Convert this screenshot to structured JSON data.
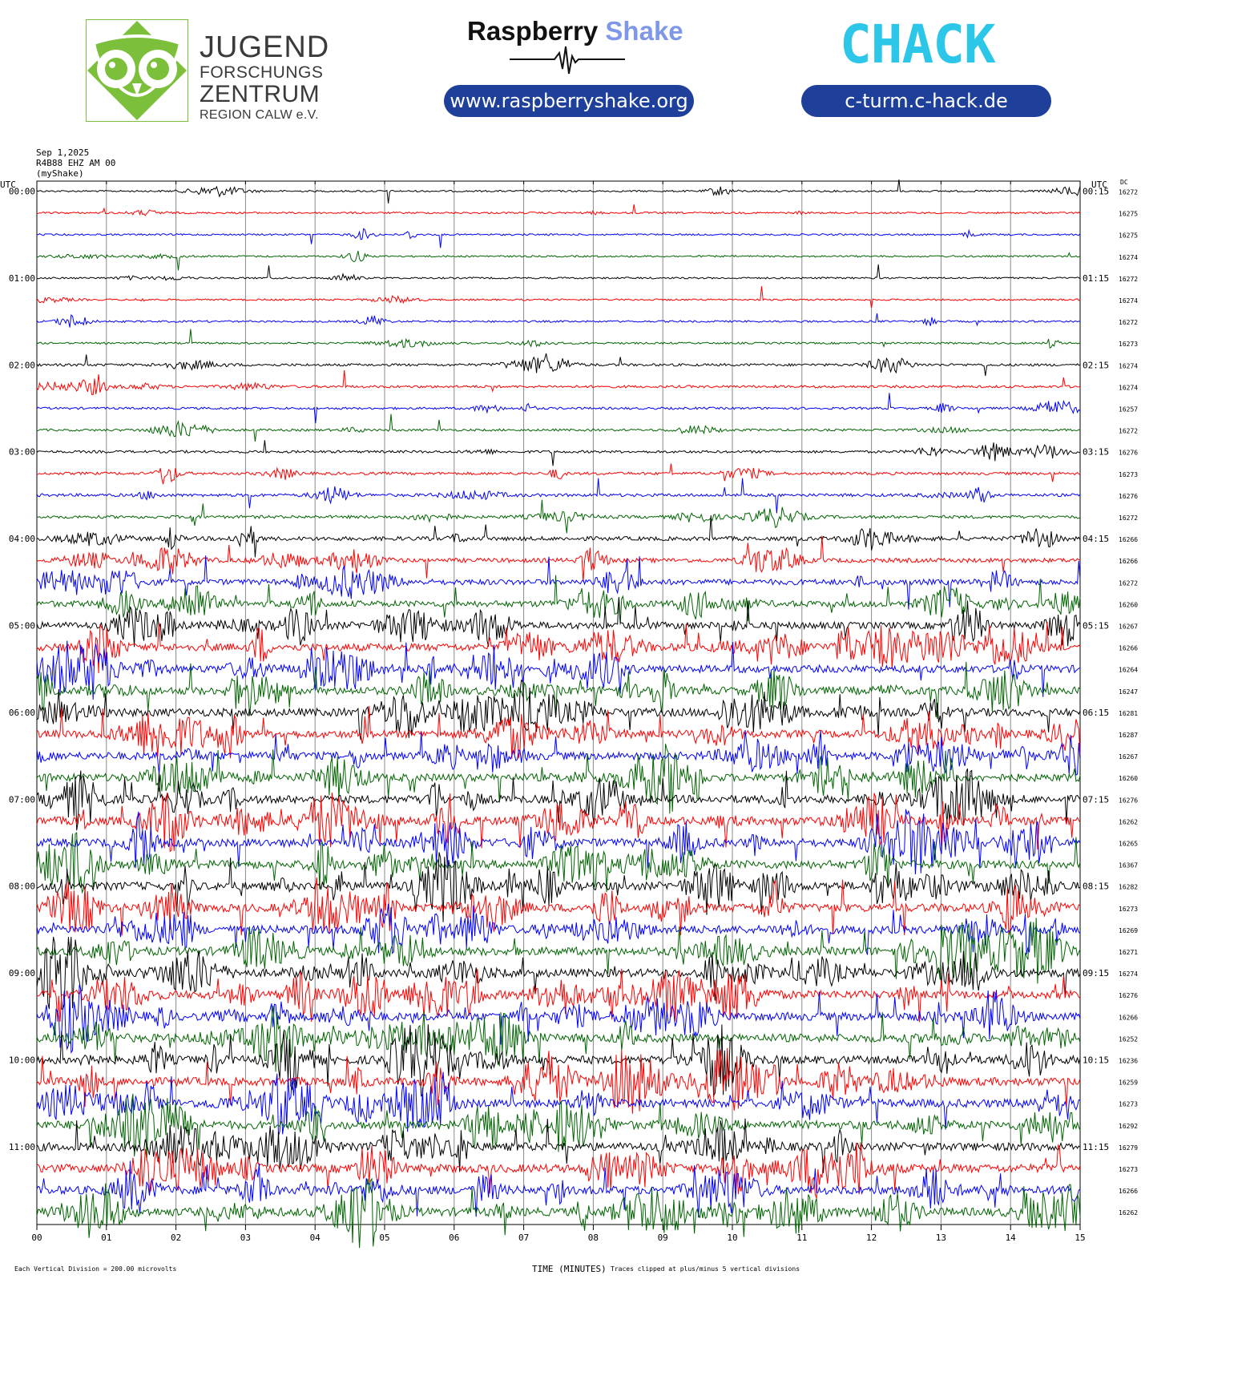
{
  "header": {
    "org_lines": [
      "JUGEND",
      "FORSCHUNGS",
      "ZENTRUM",
      "REGION CALW e.V."
    ],
    "rs_title_main": "Raspberry",
    "rs_title_accent": "Shake",
    "rs_url": "www.raspberryshake.org",
    "chack_logo_text": "CHACK",
    "chack_url": "c-turm.c-hack.de",
    "colors": {
      "owl_green": "#7cbf3a",
      "pill_blue": "#1e3f9a",
      "rs_accent": "#7f97e8",
      "chack_green": "#6cc531",
      "chack_cyan": "#2bc6e8"
    }
  },
  "meta": {
    "date": "Sep 1,2025",
    "station": "R4B88 EHZ AM 00",
    "source": "(myShake)",
    "left_tz": "UTC",
    "right_tz": "UTC",
    "dc_header": "DC",
    "footer_left": "Each Vertical Division =  200.00 microvolts",
    "footer_axis": "TIME (MINUTES)",
    "footer_right": "Traces clipped at plus/minus 5 vertical divisions"
  },
  "chart_data": {
    "type": "line",
    "title": "",
    "xlabel": "TIME (MINUTES)",
    "ylabel": "",
    "xlim": [
      0,
      15
    ],
    "x_ticks": [
      "00",
      "01",
      "02",
      "03",
      "04",
      "05",
      "06",
      "07",
      "08",
      "09",
      "10",
      "11",
      "12",
      "13",
      "14",
      "15"
    ],
    "grid": "vertical lines every minute",
    "trace_minutes": 15,
    "colors_cycle": [
      "#000000",
      "#ff0000",
      "#0000ff",
      "#006400"
    ],
    "left_labels": [
      "00:00",
      "",
      "",
      "",
      "01:00",
      "",
      "",
      "",
      "02:00",
      "",
      "",
      "",
      "03:00",
      "",
      "",
      "",
      "04:00",
      "",
      "",
      "",
      "05:00",
      "",
      "",
      "",
      "06:00",
      "",
      "",
      "",
      "07:00",
      "",
      "",
      "",
      "08:00",
      "",
      "",
      "",
      "09:00",
      "",
      "",
      "",
      "10:00",
      "",
      "",
      "",
      "11:00",
      "",
      "",
      ""
    ],
    "right_labels": [
      "00:15",
      "",
      "",
      "",
      "01:15",
      "",
      "",
      "",
      "02:15",
      "",
      "",
      "",
      "03:15",
      "",
      "",
      "",
      "04:15",
      "",
      "",
      "",
      "05:15",
      "",
      "",
      "",
      "06:15",
      "",
      "",
      "",
      "07:15",
      "",
      "",
      "",
      "08:15",
      "",
      "",
      "",
      "09:15",
      "",
      "",
      "",
      "10:15",
      "",
      "",
      "",
      "11:15",
      "",
      "",
      ""
    ],
    "dc_values": [
      16272,
      16275,
      16275,
      16274,
      16272,
      16274,
      16272,
      16273,
      16274,
      16274,
      16257,
      16272,
      16276,
      16273,
      16276,
      16272,
      16266,
      16266,
      16272,
      16260,
      16267,
      16266,
      16264,
      16247,
      16281,
      16287,
      16267,
      16260,
      16276,
      16262,
      16265,
      16367,
      16282,
      16273,
      16269,
      16271,
      16274,
      16276,
      16266,
      16252,
      16236,
      16259,
      16273,
      16292,
      16279,
      16273,
      16266,
      16262
    ],
    "activity_level": [
      0.3,
      0.35,
      0.3,
      0.3,
      0.3,
      0.3,
      0.35,
      0.35,
      0.6,
      0.6,
      0.5,
      0.5,
      0.6,
      0.7,
      0.8,
      0.8,
      1.2,
      1.3,
      1.8,
      2.0,
      2.3,
      2.5,
      2.5,
      2.6,
      2.7,
      2.6,
      2.6,
      2.6,
      2.7,
      2.8,
      2.8,
      2.8,
      2.8,
      2.8,
      2.8,
      2.8,
      2.8,
      2.8,
      2.8,
      2.8,
      2.8,
      2.8,
      2.8,
      2.8,
      2.8,
      2.8,
      2.8,
      2.8
    ]
  }
}
